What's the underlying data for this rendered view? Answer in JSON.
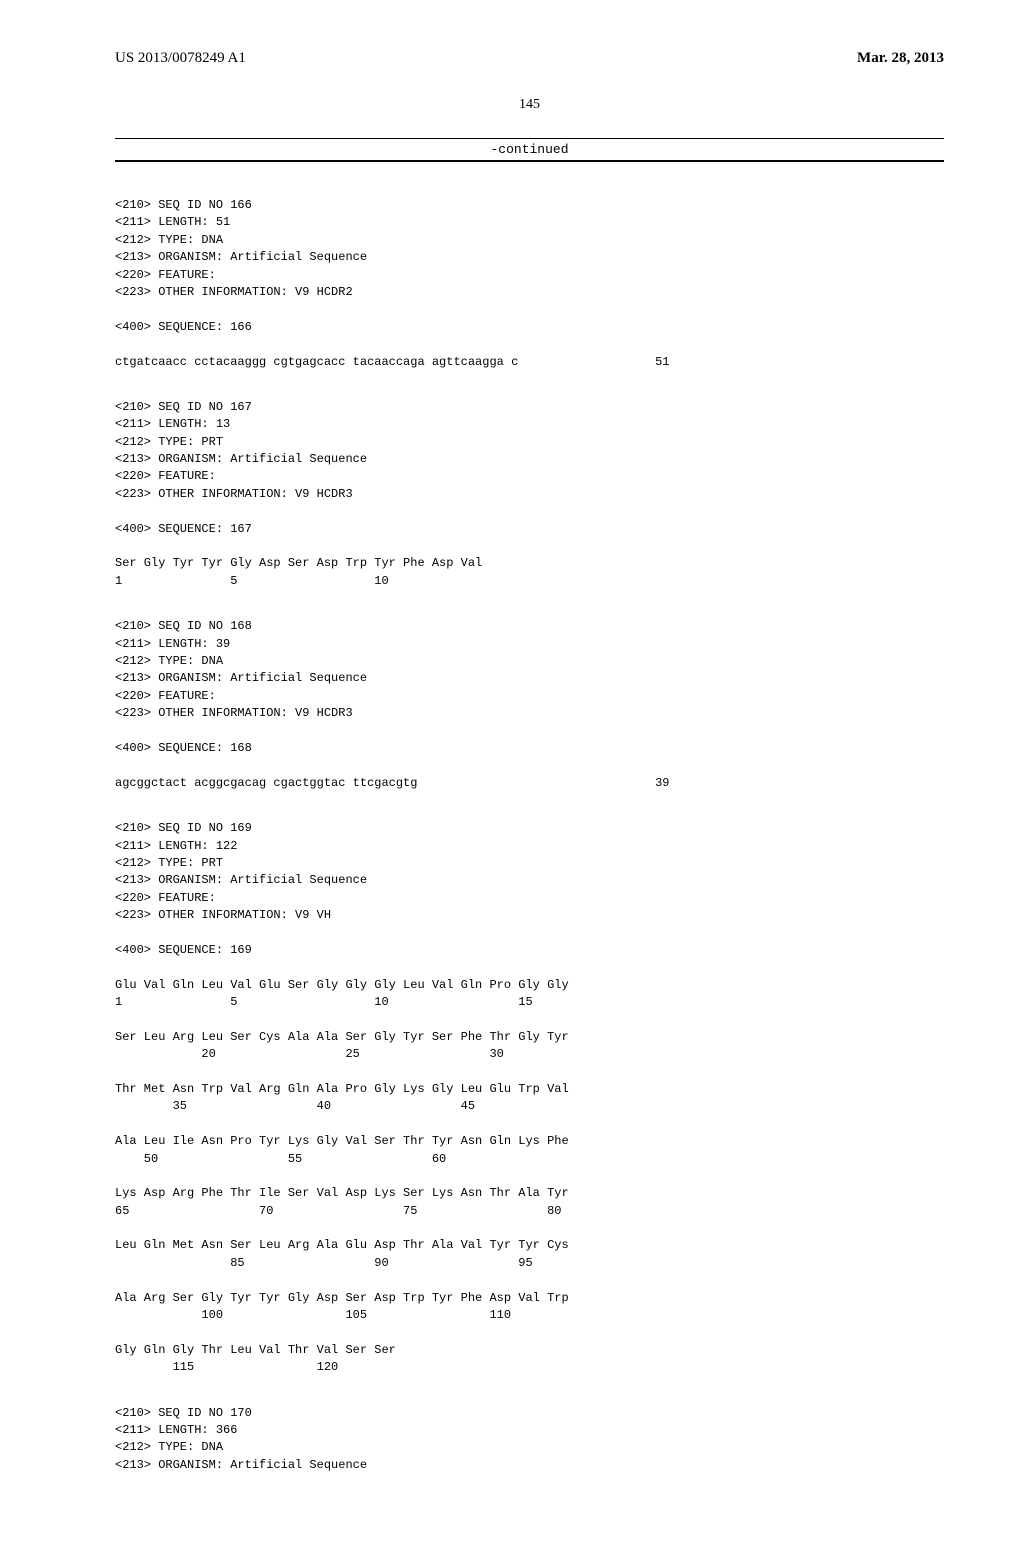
{
  "header": {
    "patent_id": "US 2013/0078249 A1",
    "date": "Mar. 28, 2013",
    "page_number": "145",
    "continued": "-continued"
  },
  "blocks": [
    {
      "lines": [
        "<210> SEQ ID NO 166",
        "<211> LENGTH: 51",
        "<212> TYPE: DNA",
        "<213> ORGANISM: Artificial Sequence",
        "<220> FEATURE:",
        "<223> OTHER INFORMATION: V9 HCDR2",
        "",
        "<400> SEQUENCE: 166",
        "",
        "ctgatcaacc cctacaaggg cgtgagcacc tacaaccaga agttcaagga c                   51"
      ]
    },
    {
      "lines": [
        "<210> SEQ ID NO 167",
        "<211> LENGTH: 13",
        "<212> TYPE: PRT",
        "<213> ORGANISM: Artificial Sequence",
        "<220> FEATURE:",
        "<223> OTHER INFORMATION: V9 HCDR3",
        "",
        "<400> SEQUENCE: 167",
        "",
        "Ser Gly Tyr Tyr Gly Asp Ser Asp Trp Tyr Phe Asp Val",
        "1               5                   10"
      ]
    },
    {
      "lines": [
        "<210> SEQ ID NO 168",
        "<211> LENGTH: 39",
        "<212> TYPE: DNA",
        "<213> ORGANISM: Artificial Sequence",
        "<220> FEATURE:",
        "<223> OTHER INFORMATION: V9 HCDR3",
        "",
        "<400> SEQUENCE: 168",
        "",
        "agcggctact acggcgacag cgactggtac ttcgacgtg                                 39"
      ]
    },
    {
      "lines": [
        "<210> SEQ ID NO 169",
        "<211> LENGTH: 122",
        "<212> TYPE: PRT",
        "<213> ORGANISM: Artificial Sequence",
        "<220> FEATURE:",
        "<223> OTHER INFORMATION: V9 VH",
        "",
        "<400> SEQUENCE: 169",
        "",
        "Glu Val Gln Leu Val Glu Ser Gly Gly Gly Leu Val Gln Pro Gly Gly",
        "1               5                   10                  15",
        "",
        "Ser Leu Arg Leu Ser Cys Ala Ala Ser Gly Tyr Ser Phe Thr Gly Tyr",
        "            20                  25                  30",
        "",
        "Thr Met Asn Trp Val Arg Gln Ala Pro Gly Lys Gly Leu Glu Trp Val",
        "        35                  40                  45",
        "",
        "Ala Leu Ile Asn Pro Tyr Lys Gly Val Ser Thr Tyr Asn Gln Lys Phe",
        "    50                  55                  60",
        "",
        "Lys Asp Arg Phe Thr Ile Ser Val Asp Lys Ser Lys Asn Thr Ala Tyr",
        "65                  70                  75                  80",
        "",
        "Leu Gln Met Asn Ser Leu Arg Ala Glu Asp Thr Ala Val Tyr Tyr Cys",
        "                85                  90                  95",
        "",
        "Ala Arg Ser Gly Tyr Tyr Gly Asp Ser Asp Trp Tyr Phe Asp Val Trp",
        "            100                 105                 110",
        "",
        "Gly Gln Gly Thr Leu Val Thr Val Ser Ser",
        "        115                 120"
      ]
    },
    {
      "lines": [
        "<210> SEQ ID NO 170",
        "<211> LENGTH: 366",
        "<212> TYPE: DNA",
        "<213> ORGANISM: Artificial Sequence"
      ]
    }
  ]
}
